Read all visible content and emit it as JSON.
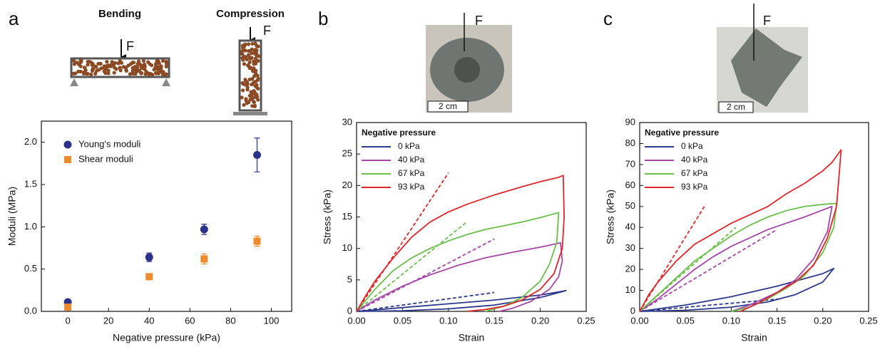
{
  "panel_labels": [
    "a",
    "b",
    "c"
  ],
  "illustrations": {
    "bending": "Bending",
    "compression": "Compression",
    "bending_force": "F",
    "compression_force": "F",
    "photo_b_force": "F",
    "photo_b_scale": "2 cm",
    "photo_c_force": "F",
    "photo_c_scale": "2 cm"
  },
  "chart_data": [
    {
      "type": "scatter",
      "x_label": "Negative pressure (kPa)",
      "y_label": "Moduli (MPa)",
      "xlim": [
        -13,
        110
      ],
      "xticks": [
        0,
        20,
        40,
        60,
        80,
        100
      ],
      "ylim": [
        0,
        2.25
      ],
      "yticks": [
        {
          "value": 0,
          "label": "0.0"
        },
        0.5,
        {
          "value": 1,
          "label": "1.0"
        },
        1.5,
        {
          "value": 2,
          "label": "2.0"
        }
      ],
      "legend": "upper left",
      "series": [
        {
          "name": "Young's moduli",
          "color": "#2b3188",
          "marker": "circle",
          "x": [
            0,
            40,
            67,
            93
          ],
          "values": [
            0.11,
            0.64,
            0.97,
            1.85
          ],
          "errors": [
            0.02,
            0.05,
            0.06,
            0.2
          ]
        },
        {
          "name": "Shear moduli",
          "color": "#ee8a2e",
          "marker": "square",
          "x": [
            0,
            40,
            67,
            93
          ],
          "values": [
            0.05,
            0.41,
            0.62,
            0.83
          ],
          "errors": [
            0.01,
            0.03,
            0.06,
            0.06
          ]
        }
      ]
    },
    {
      "type": "line",
      "x_label": "Strain",
      "y_label": "Stress (kPa)",
      "xlim": [
        0,
        0.25
      ],
      "xticks": [
        {
          "value": 0,
          "label": "0.00"
        },
        0.05,
        {
          "value": 0.1,
          "label": "0.10"
        },
        0.15,
        {
          "value": 0.2,
          "label": "0.20"
        },
        0.25
      ],
      "ylim": [
        0,
        30
      ],
      "yticks": [
        0,
        5,
        10,
        15,
        20,
        25,
        30
      ],
      "legend_title": "Negative pressure",
      "legend": "upper left",
      "series": [
        {
          "name": "0 kPa",
          "color": "#2e3a8c",
          "x": [
            0,
            0.05,
            0.1,
            0.15,
            0.2,
            0.228,
            0.2,
            0.15,
            0.1,
            0.05,
            0
          ],
          "values": [
            0,
            0.6,
            1.2,
            1.8,
            2.6,
            3.3,
            2.2,
            1.0,
            0.4,
            0.1,
            0
          ]
        },
        {
          "name": "40 kPa",
          "color": "#a646a8",
          "x": [
            0,
            0.02,
            0.05,
            0.08,
            0.11,
            0.14,
            0.17,
            0.2,
            0.222,
            0.224,
            0.22,
            0.21,
            0.19,
            0.17,
            0.155
          ],
          "values": [
            0,
            1.8,
            4,
            5.8,
            7.3,
            8.5,
            9.4,
            10.2,
            10.9,
            8,
            5.5,
            3.5,
            1.6,
            0.5,
            0
          ]
        },
        {
          "name": "67 kPa",
          "color": "#6abf4b",
          "x": [
            0,
            0.02,
            0.04,
            0.06,
            0.08,
            0.1,
            0.12,
            0.14,
            0.16,
            0.18,
            0.2,
            0.22,
            0.218,
            0.21,
            0.2,
            0.18,
            0.16,
            0.14
          ],
          "values": [
            0,
            3.5,
            6.5,
            8.5,
            10,
            11.2,
            12.2,
            13,
            13.6,
            14.2,
            14.9,
            15.7,
            11,
            7.5,
            4.8,
            2.2,
            0.8,
            0
          ]
        },
        {
          "name": "93 kPa",
          "color": "#e0262a",
          "x": [
            0,
            0.01,
            0.02,
            0.04,
            0.06,
            0.08,
            0.1,
            0.12,
            0.15,
            0.18,
            0.2,
            0.22,
            0.225,
            0.226,
            0.224,
            0.215,
            0.2,
            0.18,
            0.16,
            0.14,
            0.12
          ],
          "values": [
            0,
            2.5,
            4.8,
            8.5,
            11.8,
            14.2,
            15.8,
            17,
            18.5,
            19.8,
            20.6,
            21.3,
            21.6,
            15,
            10,
            6,
            3.5,
            1.8,
            0.8,
            0.3,
            0
          ]
        }
      ],
      "fit_lines": [
        {
          "color": "#2e3a8c",
          "x": [
            0,
            0.15
          ],
          "values": [
            0,
            3
          ]
        },
        {
          "color": "#a646a8",
          "x": [
            0,
            0.15
          ],
          "values": [
            0,
            11.5
          ]
        },
        {
          "color": "#6abf4b",
          "x": [
            0,
            0.12
          ],
          "values": [
            0,
            14.2
          ]
        },
        {
          "color": "#e0262a",
          "x": [
            0,
            0.1
          ],
          "values": [
            0,
            22
          ]
        }
      ]
    },
    {
      "type": "line",
      "x_label": "Strain",
      "y_label": "Stress (kPa)",
      "xlim": [
        0,
        0.25
      ],
      "xticks": [
        {
          "value": 0,
          "label": "0.00"
        },
        0.05,
        {
          "value": 0.1,
          "label": "0.10"
        },
        0.15,
        {
          "value": 0.2,
          "label": "0.20"
        },
        0.25
      ],
      "ylim": [
        0,
        90
      ],
      "yticks": [
        0,
        10,
        20,
        30,
        40,
        50,
        60,
        70,
        80,
        90
      ],
      "legend_title": "Negative pressure",
      "legend": "upper left",
      "series": [
        {
          "name": "0 kPa",
          "color": "#2e3a8c",
          "x": [
            0,
            0.05,
            0.1,
            0.15,
            0.2,
            0.212,
            0.2,
            0.17,
            0.14,
            0.1,
            0.05,
            0
          ],
          "values": [
            0,
            3,
            7,
            12,
            18,
            20.5,
            14,
            8,
            4.5,
            2,
            0.5,
            0
          ]
        },
        {
          "name": "40 kPa",
          "color": "#a646a8",
          "x": [
            0,
            0.02,
            0.04,
            0.06,
            0.08,
            0.1,
            0.12,
            0.14,
            0.16,
            0.18,
            0.21,
            0.205,
            0.19,
            0.17,
            0.15,
            0.12,
            0.1
          ],
          "values": [
            0,
            6,
            13,
            20,
            26,
            31,
            35,
            39,
            42,
            45,
            50,
            38,
            25,
            15,
            9,
            3,
            0
          ]
        },
        {
          "name": "67 kPa",
          "color": "#6abf4b",
          "x": [
            0,
            0.02,
            0.04,
            0.06,
            0.08,
            0.1,
            0.12,
            0.14,
            0.16,
            0.18,
            0.2,
            0.215,
            0.212,
            0.2,
            0.18,
            0.16,
            0.14,
            0.12,
            0.1
          ],
          "values": [
            0,
            8,
            16,
            24,
            30,
            36,
            41,
            45,
            48,
            50,
            51,
            51.5,
            40,
            28,
            17,
            11,
            6,
            2,
            0
          ]
        },
        {
          "name": "93 kPa",
          "color": "#e0262a",
          "x": [
            0,
            0.01,
            0.02,
            0.04,
            0.05,
            0.06,
            0.08,
            0.1,
            0.12,
            0.14,
            0.16,
            0.18,
            0.2,
            0.21,
            0.22,
            0.215,
            0.205,
            0.19,
            0.17,
            0.15,
            0.13,
            0.11
          ],
          "values": [
            0,
            8,
            14,
            24,
            28,
            32,
            37,
            42,
            46,
            50,
            56,
            61,
            67,
            71,
            77,
            50,
            35,
            22,
            14,
            9,
            4,
            0
          ]
        }
      ],
      "fit_lines": [
        {
          "color": "#2e3a8c",
          "x": [
            0,
            0.155
          ],
          "values": [
            0,
            6
          ]
        },
        {
          "color": "#a646a8",
          "x": [
            0,
            0.15
          ],
          "values": [
            0,
            39
          ]
        },
        {
          "color": "#6abf4b",
          "x": [
            0,
            0.105
          ],
          "values": [
            0,
            40
          ]
        },
        {
          "color": "#e0262a",
          "x": [
            0,
            0.072
          ],
          "values": [
            0,
            51
          ]
        }
      ]
    }
  ]
}
